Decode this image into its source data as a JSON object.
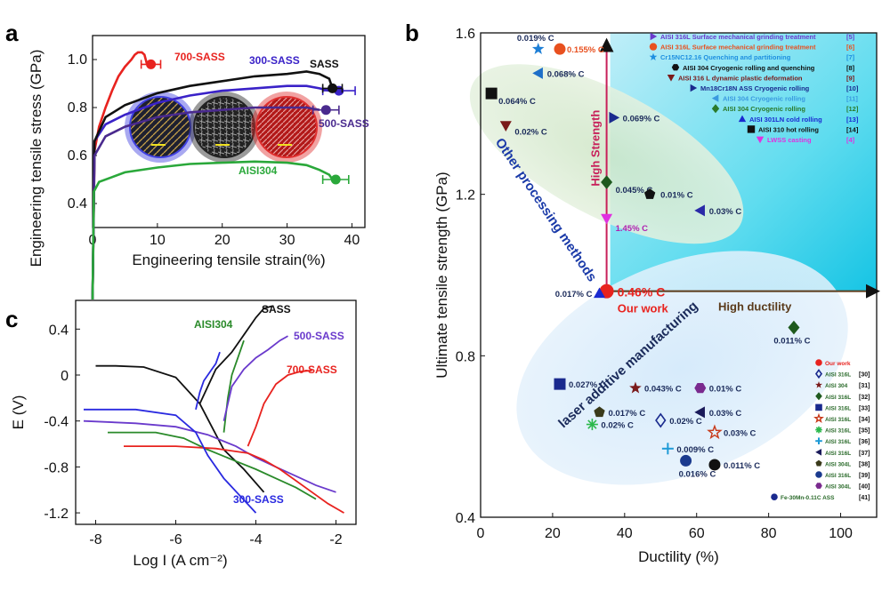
{
  "chart_data": [
    {
      "panel": "a",
      "type": "line",
      "xlabel": "Engineering tensile strain(%)",
      "ylabel": "Engineering tensile stress (GPa)",
      "xlim": [
        0,
        42
      ],
      "ylim": [
        0.3,
        1.1
      ],
      "xticks": [
        "0",
        "10",
        "20",
        "30",
        "40"
      ],
      "xtick_values": [
        0,
        10,
        20,
        30,
        40
      ],
      "yticks": [
        "0.4",
        "0.6",
        "0.8",
        "1.0"
      ],
      "ytick_values": [
        0.4,
        0.6,
        0.8,
        1.0
      ],
      "series": [
        {
          "name": "700-SASS",
          "color": "#e8231f",
          "x": [
            0,
            0.3,
            1,
            2,
            3,
            4,
            5,
            6,
            6.5,
            7,
            7.6,
            8,
            8.4
          ],
          "y": [
            0,
            0.62,
            0.72,
            0.8,
            0.87,
            0.93,
            0.97,
            1.0,
            1.02,
            1.03,
            1.03,
            1.02,
            0.98
          ],
          "end": {
            "x": 9,
            "y": 0.98,
            "err": 1.5
          }
        },
        {
          "name": "300-SASS",
          "color": "#3a22c8",
          "x": [
            0,
            0.3,
            2,
            5,
            10,
            15,
            20,
            25,
            30,
            33,
            35,
            36.5
          ],
          "y": [
            0,
            0.66,
            0.73,
            0.77,
            0.82,
            0.85,
            0.87,
            0.88,
            0.89,
            0.89,
            0.88,
            0.87
          ],
          "end": {
            "x": 38,
            "y": 0.87,
            "err": 2.5
          }
        },
        {
          "name": "SASS",
          "color": "#111111",
          "x": [
            0,
            0.3,
            2,
            5,
            10,
            15,
            20,
            25,
            30,
            33,
            35,
            36.5,
            37
          ],
          "y": [
            0,
            0.66,
            0.76,
            0.81,
            0.86,
            0.89,
            0.91,
            0.93,
            0.94,
            0.95,
            0.94,
            0.92,
            0.88
          ],
          "end": {
            "x": 37,
            "y": 0.88,
            "err": 1.5
          }
        },
        {
          "name": "500-SASS",
          "color": "#4a2a8e",
          "x": [
            0,
            0.3,
            2,
            5,
            10,
            15,
            20,
            25,
            30,
            33,
            35
          ],
          "y": [
            0,
            0.6,
            0.68,
            0.72,
            0.76,
            0.78,
            0.79,
            0.8,
            0.8,
            0.8,
            0.79
          ],
          "end": {
            "x": 36,
            "y": 0.79,
            "err": 2
          }
        },
        {
          "name": "AISI304",
          "color": "#2aa83a",
          "x": [
            0,
            0.2,
            1,
            3,
            5,
            10,
            15,
            20,
            25,
            30,
            33,
            35,
            36.5,
            37
          ],
          "y": [
            0,
            0.45,
            0.49,
            0.51,
            0.53,
            0.55,
            0.565,
            0.57,
            0.575,
            0.57,
            0.56,
            0.54,
            0.52,
            0.5
          ],
          "end": {
            "x": 37.5,
            "y": 0.5,
            "err": 2
          }
        }
      ],
      "labels": [
        "700-SASS",
        "300-SASS",
        "SASS",
        "500-SASS",
        "AISI304"
      ]
    },
    {
      "panel": "b",
      "type": "scatter",
      "xlabel": "Ductility (%)",
      "ylabel": "Ultimate tensile strength (GPa)",
      "xlim": [
        0,
        110
      ],
      "ylim": [
        0.4,
        1.6
      ],
      "xticks": [
        "0",
        "20",
        "40",
        "60",
        "80",
        "100"
      ],
      "xtick_values": [
        0,
        20,
        40,
        60,
        80,
        100
      ],
      "yticks": [
        "0.4",
        "0.8",
        "1.2",
        "1.6"
      ],
      "ytick_values": [
        0.4,
        0.8,
        1.2,
        1.6
      ],
      "region_labels": [
        "Other processing methods",
        "laser additive manufacturing",
        "High Strength",
        "High ductility",
        "Our work"
      ],
      "points": [
        {
          "x": 16,
          "y": 1.56,
          "label": "0.019% C",
          "marker": "star",
          "color": "#1e7fd6"
        },
        {
          "x": 22,
          "y": 1.56,
          "label": "0.155% C",
          "marker": "circle",
          "color": "#e8501f"
        },
        {
          "x": 16,
          "y": 1.5,
          "label": "0.068% C",
          "marker": "tri-left",
          "color": "#1e6fc8"
        },
        {
          "x": 3,
          "y": 1.45,
          "label": "0.064% C",
          "marker": "square",
          "color": "#111111"
        },
        {
          "x": 7,
          "y": 1.37,
          "label": "0.02% C",
          "marker": "tri-down",
          "color": "#7a1a1a"
        },
        {
          "x": 37,
          "y": 1.39,
          "label": "0.069% C",
          "marker": "tri-right",
          "color": "#1a2a8e"
        },
        {
          "x": 35,
          "y": 1.23,
          "label": "0.045% C",
          "marker": "diamond",
          "color": "#1e5a1e"
        },
        {
          "x": 47,
          "y": 1.2,
          "label": "0.01% C",
          "marker": "pentagon",
          "color": "#111111"
        },
        {
          "x": 61,
          "y": 1.16,
          "label": "0.03% C",
          "marker": "tri-left",
          "color": "#2a2aa8"
        },
        {
          "x": 35,
          "y": 1.14,
          "label": "1.45% C",
          "marker": "tri-down",
          "color": "#e030e0"
        },
        {
          "x": 35,
          "y": 0.96,
          "label": "0.46% C",
          "marker": "circle",
          "color": "#e8231f"
        },
        {
          "x": 33,
          "y": 0.955,
          "label": "0.017% C",
          "marker": "tri-up",
          "color": "#1a2ad0"
        },
        {
          "x": 87,
          "y": 0.87,
          "label": "0.011% C",
          "marker": "diamond",
          "color": "#1e5a1e"
        },
        {
          "x": 22,
          "y": 0.73,
          "label": "0.027% C",
          "marker": "square",
          "color": "#1a2a8e"
        },
        {
          "x": 43,
          "y": 0.72,
          "label": "0.043% C",
          "marker": "star",
          "color": "#7a1a1a"
        },
        {
          "x": 61,
          "y": 0.72,
          "label": "0.01% C",
          "marker": "hexagon",
          "color": "#7a2a8e"
        },
        {
          "x": 33,
          "y": 0.66,
          "label": "0.017% C",
          "marker": "pentagon",
          "color": "#3a3a1a"
        },
        {
          "x": 50,
          "y": 0.64,
          "label": "0.02% C",
          "marker": "diamond-outline",
          "color": "#1a2a8e"
        },
        {
          "x": 61,
          "y": 0.66,
          "label": "0.03% C",
          "marker": "tri-left",
          "color": "#1a1a5a"
        },
        {
          "x": 31,
          "y": 0.63,
          "label": "0.02% C",
          "marker": "asterisk",
          "color": "#2ab84a"
        },
        {
          "x": 65,
          "y": 0.61,
          "label": "0.03% C",
          "marker": "star-outline",
          "color": "#c83a1a"
        },
        {
          "x": 52,
          "y": 0.57,
          "label": "0.009% C",
          "marker": "plus",
          "color": "#1e9ad6"
        },
        {
          "x": 57,
          "y": 0.54,
          "label": "0.016% C",
          "marker": "circle",
          "color": "#1a3a8e"
        },
        {
          "x": 65,
          "y": 0.53,
          "label": "0.011% C",
          "marker": "circle",
          "color": "#111111"
        }
      ],
      "legend_top": [
        {
          "text": "AISI 316L Surface mechanical grinding treatment",
          "ref": "[5]",
          "color": "#6a3acc",
          "marker": "tri-right"
        },
        {
          "text": "AISI 316L Surface mechanical grinding treatment",
          "ref": "[6]",
          "color": "#e8501f",
          "marker": "circle"
        },
        {
          "text": "Cr15NC12.16 Quenching and partitioning",
          "ref": "[7]",
          "color": "#1e8fe0",
          "marker": "star"
        },
        {
          "text": "AISI 304 Cryogenic rolling and quenching",
          "ref": "[8]",
          "color": "#111111",
          "marker": "hexagon"
        },
        {
          "text": "AISI 316 L dynamic plastic deformation",
          "ref": "[9]",
          "color": "#7a1a1a",
          "marker": "tri-down"
        },
        {
          "text": "Mn18Cr18N ASS Cryogenic rolling",
          "ref": "[10]",
          "color": "#1a2a8e",
          "marker": "tri-right"
        },
        {
          "text": "AISI 304 Cryogenic rolling",
          "ref": "[11]",
          "color": "#3a9ae0",
          "marker": "tri-left"
        },
        {
          "text": "AISI 304 Cryogenic rolling",
          "ref": "[12]",
          "color": "#2a7a2a",
          "marker": "diamond"
        },
        {
          "text": "AISI 301LN cold rolling",
          "ref": "[13]",
          "color": "#1a2ad0",
          "marker": "tri-up"
        },
        {
          "text": "AISI 310 hot rolling",
          "ref": "[14]",
          "color": "#111111",
          "marker": "square"
        },
        {
          "text": "LWSS casting",
          "ref": "[4]",
          "color": "#e030e0",
          "marker": "tri-down"
        }
      ],
      "legend_bottom": [
        {
          "text": "Our work",
          "ref": "",
          "color": "#e8231f",
          "marker": "circle"
        },
        {
          "text": "AISI 316L",
          "ref": "[30]",
          "color": "#1a2a8e",
          "marker": "diamond-outline"
        },
        {
          "text": "AISI 304",
          "ref": "[31]",
          "color": "#7a1a1a",
          "marker": "star"
        },
        {
          "text": "AISI 316L",
          "ref": "[32]",
          "color": "#1e5a1e",
          "marker": "diamond"
        },
        {
          "text": "AISI 316L",
          "ref": "[33]",
          "color": "#1a2a8e",
          "marker": "square"
        },
        {
          "text": "AISI 316L",
          "ref": "[34]",
          "color": "#c83a1a",
          "marker": "star-outline"
        },
        {
          "text": "AISI 316L",
          "ref": "[35]",
          "color": "#2ab84a",
          "marker": "asterisk"
        },
        {
          "text": "AISI 316L",
          "ref": "[36]",
          "color": "#1e9ad6",
          "marker": "plus"
        },
        {
          "text": "AISI 316L",
          "ref": "[37]",
          "color": "#1a1a5a",
          "marker": "tri-left"
        },
        {
          "text": "AISI 304L",
          "ref": "[38]",
          "color": "#3a3a1a",
          "marker": "pentagon"
        },
        {
          "text": "AISI 316L",
          "ref": "[39]",
          "color": "#1a3a8e",
          "marker": "circle"
        },
        {
          "text": "AISI 304L",
          "ref": "[40]",
          "color": "#7a2a8e",
          "marker": "hexagon"
        },
        {
          "text": "Fe-30Mn-0.11C ASS",
          "ref": "[41]",
          "color": "#1a2a8e",
          "marker": "circle"
        }
      ]
    },
    {
      "panel": "c",
      "type": "line",
      "xlabel": "Log I (A cm⁻²)",
      "ylabel": "E (V)",
      "xlim": [
        -8.5,
        -1.5
      ],
      "ylim": [
        -1.3,
        0.65
      ],
      "xticks": [
        "-8",
        "-6",
        "-4",
        "-2"
      ],
      "xtick_values": [
        -8,
        -6,
        -4,
        -2
      ],
      "yticks": [
        "-1.2",
        "-0.8",
        "-0.4",
        "0",
        "0.4"
      ],
      "ytick_values": [
        -1.2,
        -0.8,
        -0.4,
        0,
        0.4
      ],
      "series": [
        {
          "name": "SASS",
          "color": "#111111",
          "x": [
            -3.8,
            -4.3,
            -4.8,
            -5.1,
            -5.4,
            -6,
            -6.8,
            -7.5,
            -8
          ],
          "y": [
            -1.02,
            -0.82,
            -0.65,
            -0.45,
            -0.25,
            -0.02,
            0.07,
            0.08,
            0.08
          ],
          "anodic": {
            "x": [
              -5.4,
              -5.0,
              -4.6,
              -4.3,
              -4.0,
              -3.8,
              -3.6
            ],
            "y": [
              -0.25,
              0.05,
              0.2,
              0.35,
              0.5,
              0.58,
              0.6
            ]
          }
        },
        {
          "name": "AISI304",
          "color": "#2a8a2a",
          "x": [
            -2.5,
            -3.0,
            -3.5,
            -4.0,
            -4.5,
            -5.2,
            -5.8,
            -6.5,
            -7.2,
            -7.7
          ],
          "y": [
            -1.08,
            -0.98,
            -0.9,
            -0.82,
            -0.75,
            -0.65,
            -0.55,
            -0.5,
            -0.5,
            -0.5
          ],
          "anodic": {
            "x": [
              -4.8,
              -4.7,
              -4.6,
              -4.5,
              -4.4,
              -4.3
            ],
            "y": [
              -0.5,
              -0.2,
              0.0,
              0.1,
              0.2,
              0.3
            ]
          }
        },
        {
          "name": "500-SASS",
          "color": "#6a3acc",
          "x": [
            -2.0,
            -2.5,
            -3.0,
            -3.5,
            -4.0,
            -4.5,
            -5.2,
            -6,
            -7,
            -8.3
          ],
          "y": [
            -1.02,
            -0.96,
            -0.88,
            -0.8,
            -0.72,
            -0.62,
            -0.52,
            -0.45,
            -0.42,
            -0.4
          ],
          "anodic": {
            "x": [
              -4.8,
              -4.6,
              -4.3,
              -4.0,
              -3.7,
              -3.4,
              -3.2
            ],
            "y": [
              -0.4,
              -0.1,
              0.05,
              0.15,
              0.22,
              0.3,
              0.34
            ]
          }
        },
        {
          "name": "700-SASS",
          "color": "#e8231f",
          "x": [
            -1.8,
            -2.2,
            -2.6,
            -3.0,
            -3.4,
            -3.8,
            -4.2,
            -5,
            -6,
            -7.3
          ],
          "y": [
            -1.2,
            -1.12,
            -1.02,
            -0.92,
            -0.82,
            -0.74,
            -0.68,
            -0.64,
            -0.62,
            -0.62
          ],
          "anodic": {
            "x": [
              -4.2,
              -4.0,
              -3.8,
              -3.5,
              -3.2,
              -2.9,
              -2.6
            ],
            "y": [
              -0.62,
              -0.45,
              -0.25,
              -0.08,
              0.0,
              0.03,
              0.04
            ]
          }
        },
        {
          "name": "300-SASS",
          "color": "#2a2ae0",
          "x": [
            -4.0,
            -4.4,
            -4.8,
            -5.2,
            -5.5,
            -6,
            -7,
            -8.3
          ],
          "y": [
            -1.2,
            -1.05,
            -0.9,
            -0.7,
            -0.5,
            -0.35,
            -0.3,
            -0.3
          ],
          "anodic": {
            "x": [
              -5.5,
              -5.4,
              -5.3,
              -5.2,
              -5.1,
              -5.0,
              -4.9
            ],
            "y": [
              -0.3,
              -0.15,
              -0.05,
              0.0,
              0.05,
              0.1,
              0.2
            ]
          }
        }
      ],
      "labels": [
        "SASS",
        "AISI304",
        "500-SASS",
        "700-SASS",
        "300-SASS"
      ]
    }
  ]
}
